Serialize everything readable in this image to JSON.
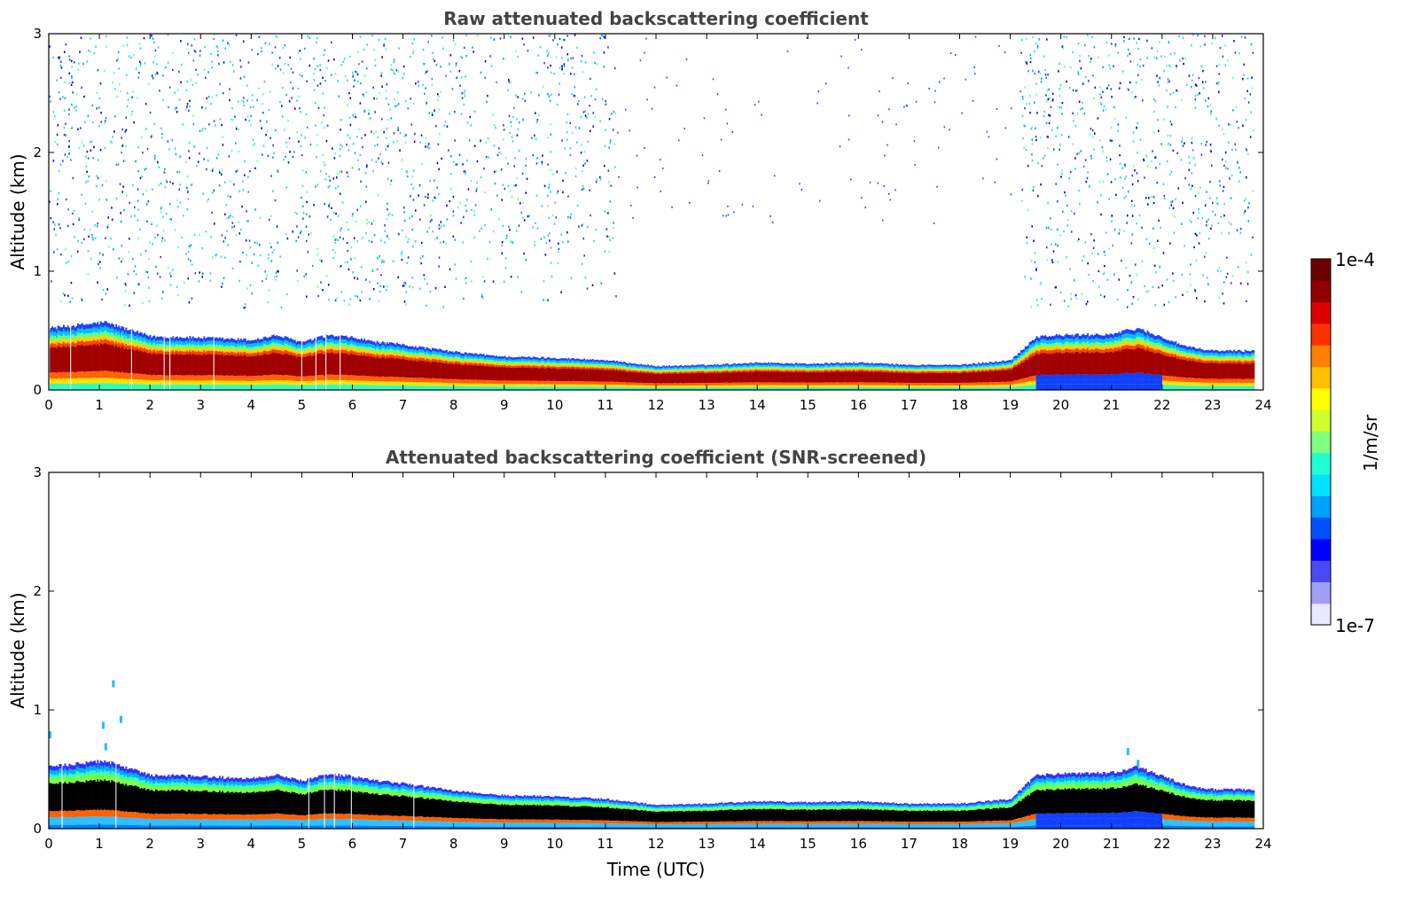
{
  "chart_data": [
    {
      "type": "heatmap",
      "title": "Raw attenuated backscattering coefficient",
      "xlabel": "",
      "ylabel": "Altitude (km)",
      "xlim": [
        0,
        24
      ],
      "ylim": [
        0,
        3
      ],
      "xticks": [
        "0",
        "1",
        "2",
        "3",
        "4",
        "5",
        "6",
        "7",
        "8",
        "9",
        "10",
        "11",
        "12",
        "13",
        "14",
        "15",
        "16",
        "17",
        "18",
        "19",
        "20",
        "21",
        "22",
        "23",
        "24"
      ],
      "yticks": [
        "0",
        "1",
        "2",
        "3"
      ],
      "noise_extent": [
        [
          0,
          11.2
        ],
        [
          19.2,
          22.5
        ],
        [
          22.5,
          23.8
        ]
      ],
      "aerosol_layer_top_km": [
        [
          0,
          0.52
        ],
        [
          1.1,
          0.57
        ],
        [
          2,
          0.45
        ],
        [
          3,
          0.44
        ],
        [
          4,
          0.42
        ],
        [
          4.5,
          0.46
        ],
        [
          5,
          0.4
        ],
        [
          5.5,
          0.46
        ],
        [
          6,
          0.44
        ],
        [
          6.5,
          0.4
        ],
        [
          7,
          0.38
        ],
        [
          8,
          0.32
        ],
        [
          9,
          0.28
        ],
        [
          10,
          0.27
        ],
        [
          11,
          0.25
        ],
        [
          12,
          0.2
        ],
        [
          13,
          0.21
        ],
        [
          14,
          0.23
        ],
        [
          15,
          0.22
        ],
        [
          16,
          0.23
        ],
        [
          17,
          0.21
        ],
        [
          18,
          0.21
        ],
        [
          19,
          0.25
        ],
        [
          19.5,
          0.45
        ],
        [
          20,
          0.46
        ],
        [
          21,
          0.47
        ],
        [
          21.5,
          0.52
        ],
        [
          22,
          0.44
        ],
        [
          22.5,
          0.36
        ],
        [
          23,
          0.33
        ],
        [
          23.8,
          0.33
        ]
      ],
      "masked": false
    },
    {
      "type": "heatmap",
      "title": "Attenuated backscattering coefficient (SNR-screened)",
      "xlabel": "Time (UTC)",
      "ylabel": "Altitude (km)",
      "xlim": [
        0,
        24
      ],
      "ylim": [
        0,
        3
      ],
      "xticks": [
        "0",
        "1",
        "2",
        "3",
        "4",
        "5",
        "6",
        "7",
        "8",
        "9",
        "10",
        "11",
        "12",
        "13",
        "14",
        "15",
        "16",
        "17",
        "18",
        "19",
        "20",
        "21",
        "22",
        "23",
        "24"
      ],
      "yticks": [
        "0",
        "1",
        "2",
        "3"
      ],
      "aerosol_layer_top_km": [
        [
          0,
          0.52
        ],
        [
          1.1,
          0.57
        ],
        [
          2,
          0.45
        ],
        [
          3,
          0.44
        ],
        [
          4,
          0.42
        ],
        [
          4.5,
          0.46
        ],
        [
          5,
          0.4
        ],
        [
          5.5,
          0.46
        ],
        [
          6,
          0.44
        ],
        [
          6.5,
          0.4
        ],
        [
          7,
          0.38
        ],
        [
          8,
          0.32
        ],
        [
          9,
          0.28
        ],
        [
          10,
          0.27
        ],
        [
          11,
          0.25
        ],
        [
          12,
          0.2
        ],
        [
          13,
          0.21
        ],
        [
          14,
          0.23
        ],
        [
          15,
          0.22
        ],
        [
          16,
          0.23
        ],
        [
          17,
          0.21
        ],
        [
          18,
          0.21
        ],
        [
          19,
          0.25
        ],
        [
          19.5,
          0.45
        ],
        [
          20,
          0.46
        ],
        [
          21,
          0.47
        ],
        [
          21.5,
          0.52
        ],
        [
          22,
          0.44
        ],
        [
          22.5,
          0.36
        ],
        [
          23,
          0.33
        ],
        [
          23.8,
          0.33
        ]
      ],
      "masked": true
    }
  ],
  "colorbar": {
    "label": "1/m/sr",
    "min_label": "1e-7",
    "max_label": "1e-4",
    "scale": "log",
    "range": [
      1e-07,
      0.0001
    ],
    "colors": [
      "#e8e8ff",
      "#9f9ff5",
      "#4a4af5",
      "#0000ff",
      "#0050ff",
      "#00a0ff",
      "#00e0ff",
      "#20ffd0",
      "#80ff80",
      "#d0ff30",
      "#ffff00",
      "#ffc000",
      "#ff8000",
      "#ff3000",
      "#e00000",
      "#900000",
      "#6a0000"
    ]
  }
}
